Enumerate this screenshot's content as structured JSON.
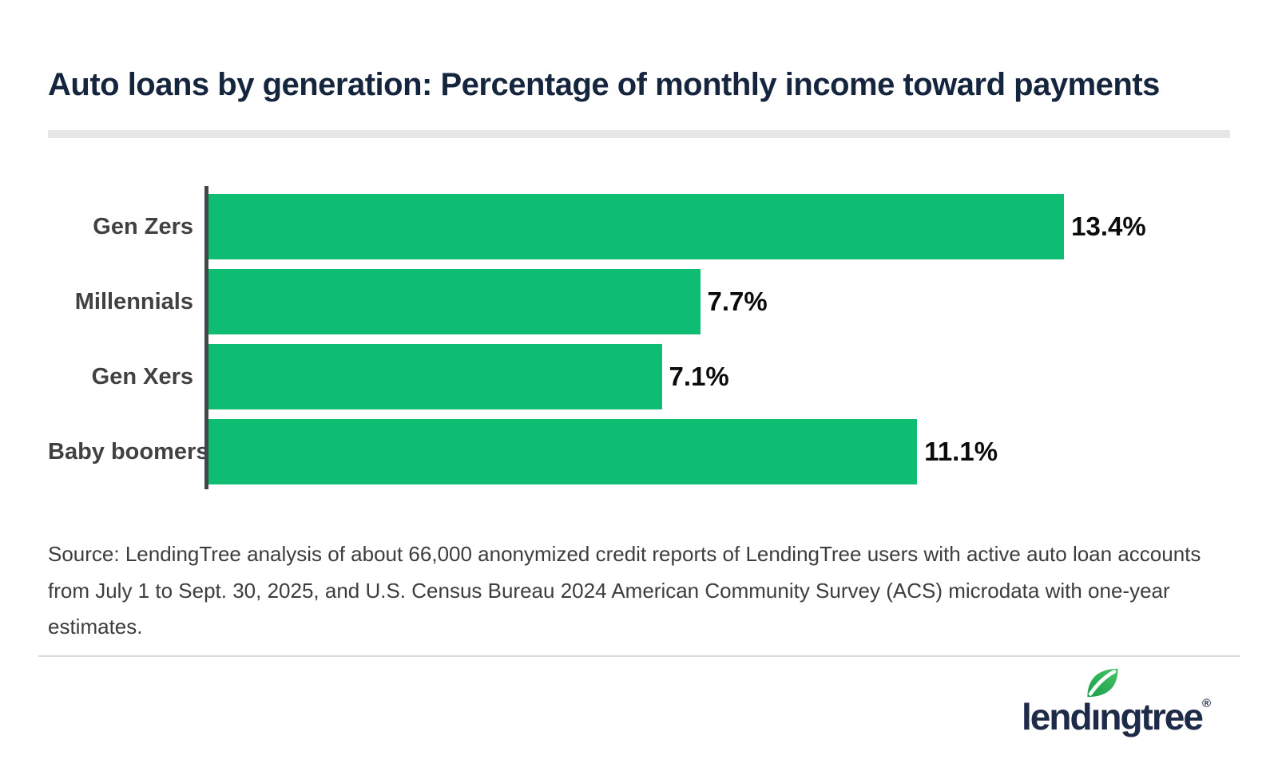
{
  "header": {
    "title": "Auto loans by generation: Percentage of monthly income toward payments"
  },
  "chart_data": {
    "type": "bar",
    "orientation": "horizontal",
    "title": "Auto loans by generation: Percentage of monthly income toward payments",
    "categories": [
      "Gen Zers",
      "Millennials",
      "Gen Xers",
      "Baby boomers"
    ],
    "values": [
      13.4,
      7.7,
      7.1,
      11.1
    ],
    "value_labels": [
      "13.4%",
      "7.7%",
      "7.1%",
      "11.1%"
    ],
    "xlabel": "",
    "ylabel": "",
    "xlim": [
      0,
      16
    ],
    "grid": false,
    "legend": false,
    "bar_color": "#0fbd72",
    "axis_color": "#41464a",
    "label_color": "#414141",
    "value_label_color": "#0b0b0b"
  },
  "source": {
    "text": "Source: LendingTree analysis of about 66,000 anonymized credit reports of LendingTree users with active auto loan accounts from July 1 to Sept. 30, 2025, and U.S. Census Bureau 2024 American Community Survey (ACS) microdata with one-year estimates."
  },
  "footer": {
    "logo_part1": "lend",
    "logo_i": "ı",
    "logo_part2": "ngtree",
    "registered": "®",
    "logo_color": "#1d2b49",
    "leaf_color_dark": "#1b9d4b",
    "leaf_color_light": "#46c467"
  }
}
